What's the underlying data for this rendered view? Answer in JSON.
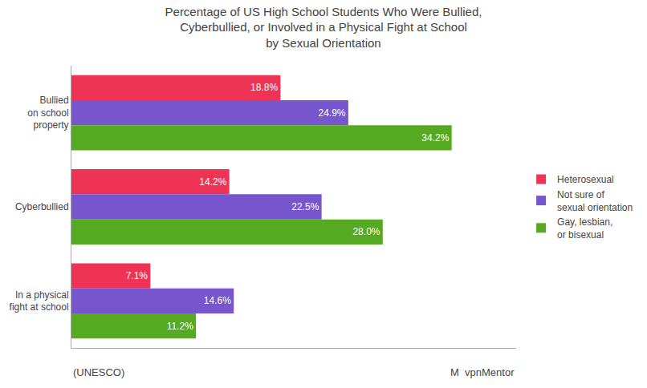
{
  "chart_data": {
    "type": "bar",
    "orientation": "horizontal",
    "title": "Percentage of US High School Students Who Were Bullied,\nCyberbullied, or Involved in a Physical Fight at School\nby Sexual Orientation",
    "categories": [
      "Bullied\non school\nproperty",
      "Cyberbullied",
      "In a physical\nfight at school"
    ],
    "series": [
      {
        "name": "Heterosexual",
        "color": "#ee3355",
        "values": [
          18.8,
          14.2,
          7.1
        ],
        "value_labels": [
          "18.8%",
          "14.2%",
          "7.1%"
        ]
      },
      {
        "name": "Not sure of\nsexual orientation",
        "color": "#7755cc",
        "values": [
          24.9,
          22.5,
          14.6
        ],
        "value_labels": [
          "24.9%",
          "22.5%",
          "14.6%"
        ]
      },
      {
        "name": "Gay, lesbian,\nor bisexual",
        "color": "#55aa22",
        "values": [
          34.2,
          28.0,
          11.2
        ],
        "value_labels": [
          "34.2%",
          "28.0%",
          "11.2%"
        ]
      }
    ],
    "xlim": [
      0,
      40
    ],
    "data_labels": true,
    "tick_labels": "y",
    "grid": false,
    "legend": "right",
    "annotations": [
      "(UNESCO)",
      "M  vpnMentor"
    ]
  }
}
